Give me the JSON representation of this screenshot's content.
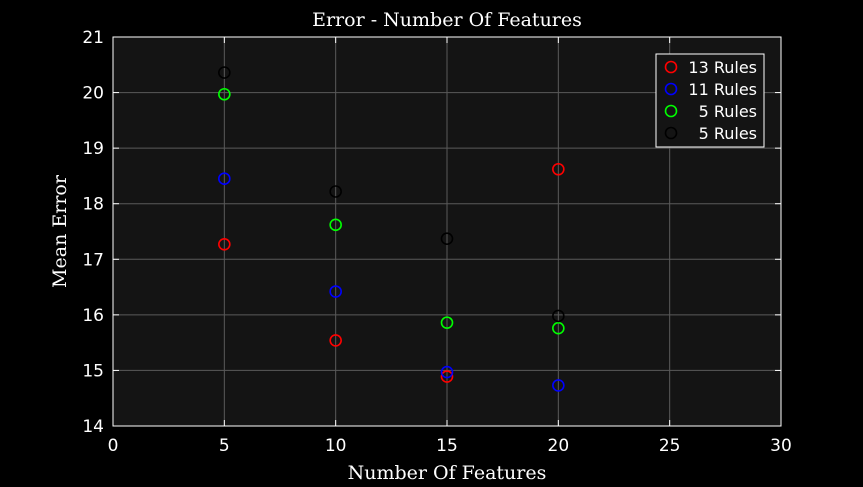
{
  "chart_data": {
    "type": "scatter",
    "title": "Error - Number Of Features",
    "xlabel": "Number Of Features",
    "ylabel": "Mean Error",
    "xlim": [
      0,
      30
    ],
    "ylim": [
      14,
      21
    ],
    "xticks": [
      0,
      5,
      10,
      15,
      20,
      25,
      30
    ],
    "yticks": [
      14,
      15,
      16,
      17,
      18,
      19,
      20,
      21
    ],
    "grid": true,
    "legend_position": "top-right",
    "marker": "circle-open",
    "background_color": "#141414",
    "figure_color": "#000000",
    "series": [
      {
        "name": "13 Rules",
        "color": "#ff0000",
        "x": [
          5,
          10,
          15,
          20
        ],
        "y": [
          17.27,
          15.54,
          14.89,
          18.62
        ]
      },
      {
        "name": "11 Rules",
        "color": "#0000ff",
        "x": [
          5,
          10,
          15,
          20
        ],
        "y": [
          18.45,
          16.42,
          14.97,
          14.73
        ]
      },
      {
        "name": "5 Rules",
        "color": "#00ff00",
        "x": [
          5,
          10,
          15,
          20
        ],
        "y": [
          19.97,
          17.62,
          15.86,
          15.76
        ]
      },
      {
        "name": "5 Rules",
        "color": "#000000",
        "x": [
          5,
          10,
          15,
          20
        ],
        "y": [
          20.36,
          18.22,
          17.37,
          15.98
        ]
      }
    ]
  }
}
